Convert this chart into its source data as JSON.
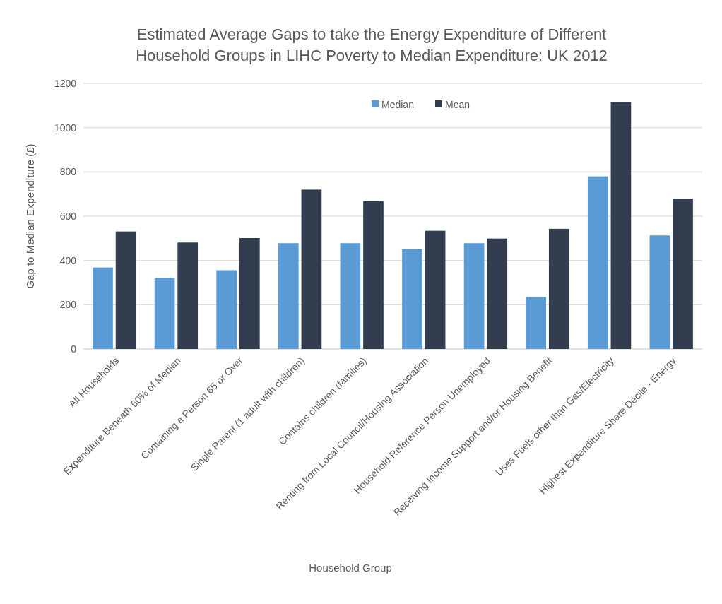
{
  "chart_data": {
    "type": "bar",
    "title": "Estimated Average Gaps to take the Energy Expenditure of Different Household Groups in LIHC Poverty to Median Expenditure: UK 2012",
    "xlabel": "Household Group",
    "ylabel": "Gap to Median Expenditure (£)",
    "categories": [
      "All Households",
      "Expenditure Beneath 60% of Median",
      "Containing a Person 65 or Over",
      "Single Parent (1 adult with children)",
      "Contains children (families)",
      "Renting from Local Council/Housing Association",
      "Household Reference Person Unemployed",
      "Receiving Income Support and/or Housing Benefit",
      "Uses Fuels other than Gas/Electricity",
      "Highest Expenditure Share Decile - Energy"
    ],
    "series": [
      {
        "name": "Median",
        "color": "#5b9bd5",
        "values": [
          368,
          322,
          356,
          478,
          478,
          451,
          478,
          235,
          780,
          513
        ]
      },
      {
        "name": "Mean",
        "color": "#323e50",
        "values": [
          531,
          481,
          501,
          720,
          667,
          534,
          499,
          543,
          1115,
          679
        ]
      }
    ],
    "ylim": [
      0,
      1200
    ],
    "yticks": [
      0,
      200,
      400,
      600,
      800,
      1000,
      1200
    ],
    "grid": "y",
    "legend": "top"
  }
}
